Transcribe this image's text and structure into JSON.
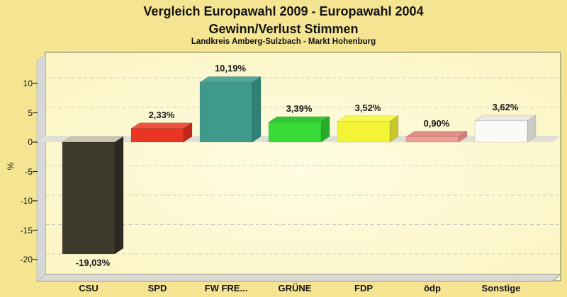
{
  "page": {
    "background": "#F5E593"
  },
  "header": {
    "title_line1": "Vergleich Europawahl 2009 - Europawahl 2004",
    "title_line2": "Gewinn/Verlust Stimmen",
    "subtitle": "Landkreis Amberg-Sulzbach - Markt Hohenburg"
  },
  "chart_data": {
    "type": "bar",
    "style": "3d-column",
    "title": "Vergleich Europawahl 2009 - Europawahl 2004 / Gewinn/Verlust Stimmen",
    "subtitle": "Landkreis Amberg-Sulzbach - Markt Hohenburg",
    "xlabel": "",
    "ylabel": "%",
    "categories": [
      "CSU",
      "SPD",
      "FW FRE...",
      "GRÜNE",
      "FDP",
      "ödp",
      "Sonstige"
    ],
    "values": [
      -19.03,
      2.33,
      10.19,
      3.39,
      3.52,
      0.9,
      3.62
    ],
    "value_labels": [
      "-19,03%",
      "2,33%",
      "10,19%",
      "3,39%",
      "3,52%",
      "0,90%",
      "3,62%"
    ],
    "yticks": [
      10,
      5,
      0,
      -5,
      -10,
      -15,
      -20
    ],
    "ytick_labels": [
      "10",
      "5",
      "0",
      "-5",
      "-10",
      "-15",
      "-20"
    ],
    "ylim": [
      -23.5,
      15.3
    ],
    "grid": "dashed-horizontal",
    "legend": "none",
    "bar_colors": [
      {
        "name": "CSU",
        "front": "#3D3A2C",
        "top": "#C9C5B1",
        "side": "#2B2920"
      },
      {
        "name": "SPD",
        "front": "#EC3423",
        "top": "#F05441",
        "side": "#BE2A1D"
      },
      {
        "name": "FW FRE...",
        "front": "#3F9A8C",
        "top": "#4FA99B",
        "side": "#2F8175"
      },
      {
        "name": "GRÜNE",
        "front": "#38DC38",
        "top": "#31C831",
        "side": "#28AB28"
      },
      {
        "name": "FDP",
        "front": "#F4F437",
        "top": "#F8F851",
        "side": "#C9C72C"
      },
      {
        "name": "ödp",
        "front": "#F19C95",
        "top": "#E18E88",
        "side": "#D27E79"
      },
      {
        "name": "Sonstige",
        "front": "#FAFAF6",
        "top": "#E9E9E4",
        "side": "#CBCBC5"
      }
    ],
    "frame_colors": {
      "plot_bg_edge": "#FAF2BE",
      "plot_bg_center": "#FFFDE2",
      "border": "#A3A37C",
      "wall": "#D8D8D8",
      "wall_edge": "#B9B9B9",
      "floor": "#D9D9D2",
      "floor_edge": "#9C9C94",
      "zero_band": "#E0E0D6",
      "gridline": "#CCCCBE",
      "tick": "#222222"
    }
  }
}
